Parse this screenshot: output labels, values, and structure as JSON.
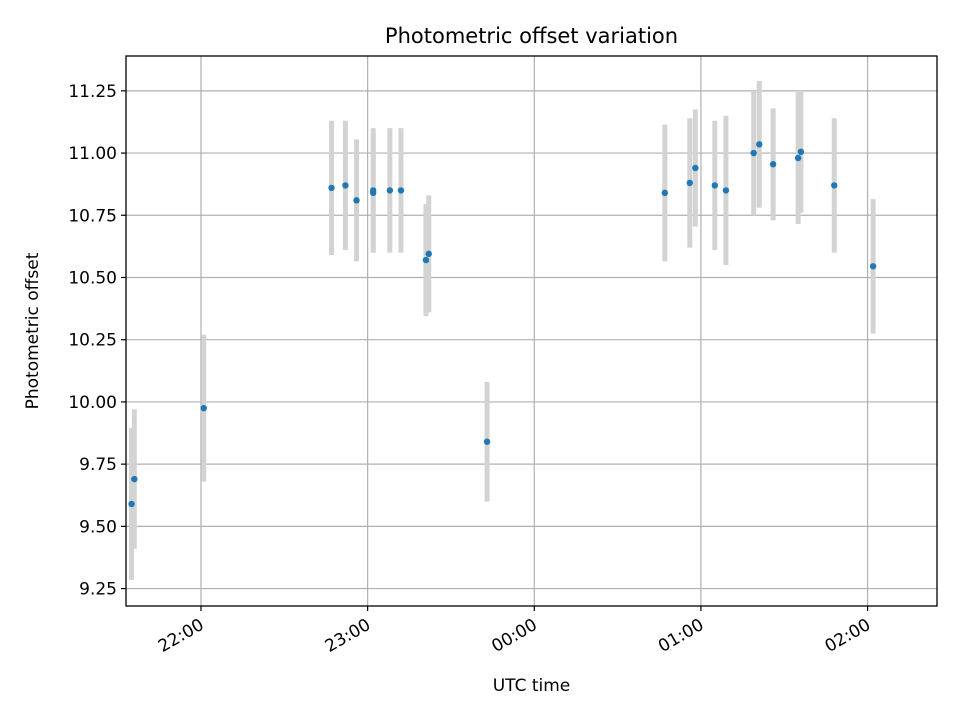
{
  "chart_data": {
    "type": "scatter",
    "title": "Photometric offset variation",
    "xlabel": "UTC time",
    "ylabel": "Photometric offset",
    "x_axis": {
      "kind": "time",
      "range": [
        "21:33",
        "02:25"
      ],
      "ticks": [
        "22:00",
        "23:00",
        "00:00",
        "01:00",
        "02:00"
      ],
      "tick_times": [
        "22:00",
        "23:00",
        "24:00",
        "25:00",
        "26:00"
      ]
    },
    "ylim": [
      9.18,
      11.39
    ],
    "yticks": [
      "9.25",
      "9.50",
      "9.75",
      "10.00",
      "10.25",
      "10.50",
      "10.75",
      "11.00",
      "11.25"
    ],
    "grid": true,
    "marker_color": "#1f77b4",
    "errorbar_color": "#d3d3d3",
    "points": [
      {
        "t": "21:35",
        "y": 9.59,
        "err": 0.305
      },
      {
        "t": "21:36",
        "y": 9.69,
        "err": 0.28
      },
      {
        "t": "22:01",
        "y": 9.975,
        "err": 0.295
      },
      {
        "t": "22:47",
        "y": 10.86,
        "err": 0.27
      },
      {
        "t": "22:52",
        "y": 10.87,
        "err": 0.26
      },
      {
        "t": "22:56",
        "y": 10.81,
        "err": 0.245
      },
      {
        "t": "23:02",
        "y": 10.85,
        "err": 0.25
      },
      {
        "t": "23:02",
        "y": 10.84,
        "err": 0.24
      },
      {
        "t": "23:08",
        "y": 10.85,
        "err": 0.25
      },
      {
        "t": "23:12",
        "y": 10.85,
        "err": 0.25
      },
      {
        "t": "23:21",
        "y": 10.57,
        "err": 0.225
      },
      {
        "t": "23:22",
        "y": 10.595,
        "err": 0.235
      },
      {
        "t": "23:43",
        "y": 9.84,
        "err": 0.24
      },
      {
        "t": "24:47",
        "y": 10.84,
        "err": 0.275
      },
      {
        "t": "24:56",
        "y": 10.88,
        "err": 0.26
      },
      {
        "t": "24:58",
        "y": 10.94,
        "err": 0.235
      },
      {
        "t": "25:05",
        "y": 10.87,
        "err": 0.26
      },
      {
        "t": "25:09",
        "y": 10.85,
        "err": 0.3
      },
      {
        "t": "25:19",
        "y": 11.0,
        "err": 0.25
      },
      {
        "t": "25:21",
        "y": 11.035,
        "err": 0.255
      },
      {
        "t": "25:26",
        "y": 10.955,
        "err": 0.225
      },
      {
        "t": "25:35",
        "y": 10.98,
        "err": 0.265
      },
      {
        "t": "25:36",
        "y": 11.005,
        "err": 0.245
      },
      {
        "t": "25:48",
        "y": 10.87,
        "err": 0.27
      },
      {
        "t": "26:02",
        "y": 10.545,
        "err": 0.27
      }
    ]
  }
}
